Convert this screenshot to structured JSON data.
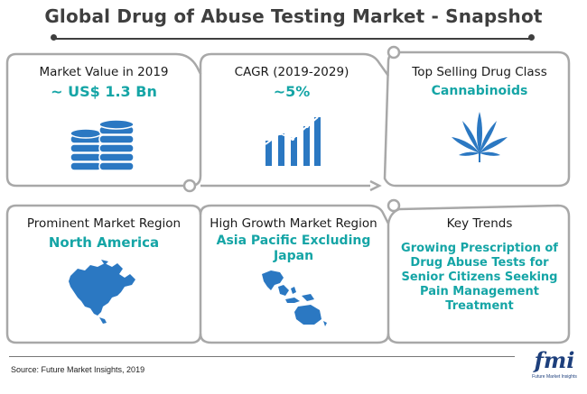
{
  "title": "Global Drug of Abuse Testing Market - Snapshot",
  "colors": {
    "accent": "#15a5a6",
    "icon_blue": "#2b78c2",
    "frame": "#a8a8a8",
    "text": "#3f3f3f"
  },
  "cards": [
    {
      "heading": "Market Value in 2019",
      "value": "~ US$ 1.3 Bn",
      "icon": "coin-stacks-icon"
    },
    {
      "heading": "CAGR (2019-2029)",
      "value": "~5%",
      "icon": "growth-bar-chart-icon"
    },
    {
      "heading": "Top Selling Drug Class",
      "value": "Cannabinoids",
      "icon": "cannabis-leaf-icon"
    },
    {
      "heading": "Prominent Market Region",
      "value": "North America",
      "icon": "north-america-map-icon"
    },
    {
      "heading": "High Growth Market Region",
      "value_lines": [
        "Asia Pacific Excluding",
        "Japan"
      ],
      "icon": "asia-pacific-map-icon"
    },
    {
      "heading": "Key Trends",
      "value_lines": [
        "Growing Prescription of",
        "Drug Abuse Tests for",
        "Senior Citizens Seeking",
        "Pain Management",
        "Treatment"
      ],
      "icon": ""
    }
  ],
  "source": "Source: Future Market Insights, 2019",
  "logo": {
    "text": "fmi",
    "subtitle": "Future Market Insights"
  }
}
